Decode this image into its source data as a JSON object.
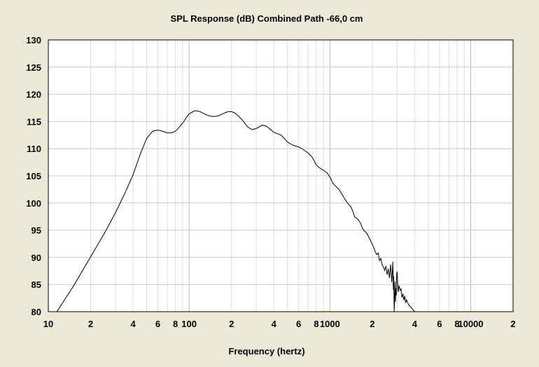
{
  "chart_data": {
    "type": "line",
    "title": "SPL Response (dB)   Combined   Path -66,0 cm",
    "xlabel": "Frequency (hertz)",
    "ylabel": "",
    "xscale": "log",
    "xlim": [
      10,
      20000
    ],
    "ylim": [
      80,
      130
    ],
    "grid": true,
    "y_ticks": [
      80,
      85,
      90,
      95,
      100,
      105,
      110,
      115,
      120,
      125,
      130
    ],
    "x_ticks": [
      {
        "value": 10,
        "label": "10"
      },
      {
        "value": 20,
        "label": "2"
      },
      {
        "value": 40,
        "label": "4"
      },
      {
        "value": 60,
        "label": "6"
      },
      {
        "value": 80,
        "label": "8"
      },
      {
        "value": 100,
        "label": "100"
      },
      {
        "value": 200,
        "label": "2"
      },
      {
        "value": 400,
        "label": "4"
      },
      {
        "value": 600,
        "label": "6"
      },
      {
        "value": 800,
        "label": "8"
      },
      {
        "value": 1000,
        "label": "1000"
      },
      {
        "value": 2000,
        "label": "2"
      },
      {
        "value": 4000,
        "label": "4"
      },
      {
        "value": 6000,
        "label": "6"
      },
      {
        "value": 8000,
        "label": "8"
      },
      {
        "value": 10000,
        "label": "10000"
      },
      {
        "value": 20000,
        "label": "2"
      }
    ],
    "series": [
      {
        "name": "",
        "color": "#000000",
        "x": [
          11.5,
          15,
          20,
          25,
          30,
          35,
          40,
          45,
          50,
          55,
          60,
          65,
          70,
          75,
          80,
          85,
          90,
          95,
          100,
          110,
          120,
          130,
          140,
          150,
          160,
          170,
          180,
          190,
          200,
          210,
          220,
          240,
          260,
          280,
          300,
          330,
          350,
          380,
          400,
          450,
          500,
          550,
          600,
          650,
          700,
          750,
          800,
          850,
          900,
          950,
          1000,
          1050,
          1100,
          1150,
          1200,
          1250,
          1300,
          1350,
          1400,
          1450,
          1500,
          1550,
          1600,
          1650,
          1700,
          1750,
          1800,
          1850,
          1900,
          1950,
          2000,
          2050,
          2100,
          2150,
          2200,
          2250,
          2300,
          2350,
          2400,
          2450,
          2500,
          2550,
          2600,
          2650,
          2700,
          2750,
          2800,
          2820,
          2840,
          2860,
          2880,
          2900,
          2920,
          2940,
          2960,
          2980,
          3000,
          3050,
          3100,
          3150,
          3200,
          3250,
          3300,
          3350,
          3400,
          3450,
          3500,
          3600,
          3700,
          3800,
          3900,
          4000
        ],
        "y": [
          80,
          84.6,
          90.1,
          94.4,
          98.2,
          101.8,
          105.2,
          109.0,
          111.9,
          113.2,
          113.4,
          113.2,
          112.9,
          112.9,
          113.2,
          113.9,
          114.7,
          115.6,
          116.4,
          117.0,
          116.8,
          116.3,
          116.0,
          115.9,
          116.0,
          116.3,
          116.6,
          116.8,
          116.8,
          116.6,
          116.2,
          115.2,
          114.0,
          113.5,
          113.7,
          114.3,
          114.2,
          113.5,
          113.0,
          112.5,
          111.2,
          110.6,
          110.3,
          109.8,
          109.2,
          108.4,
          107.0,
          106.4,
          106.0,
          105.6,
          104.8,
          103.6,
          103.1,
          102.6,
          101.9,
          101.1,
          100.4,
          99.8,
          99.4,
          98.6,
          97.4,
          97.2,
          96.8,
          96.3,
          95.4,
          94.9,
          94.6,
          94.2,
          93.6,
          93.0,
          92.4,
          91.8,
          91.0,
          90.5,
          90.8,
          89.4,
          89.8,
          88.6,
          88.2,
          87.6,
          88.4,
          86.8,
          87.9,
          86.2,
          88.7,
          85.4,
          89.2,
          84.0,
          86.5,
          80.0,
          82.5,
          85.6,
          81.8,
          84.3,
          83.0,
          86.9,
          87.4,
          83.6,
          84.8,
          83.9,
          84.2,
          82.6,
          83.3,
          82.1,
          82.9,
          81.6,
          82.2,
          81.4,
          81.0,
          80.7,
          80.3,
          80.0
        ]
      }
    ]
  }
}
